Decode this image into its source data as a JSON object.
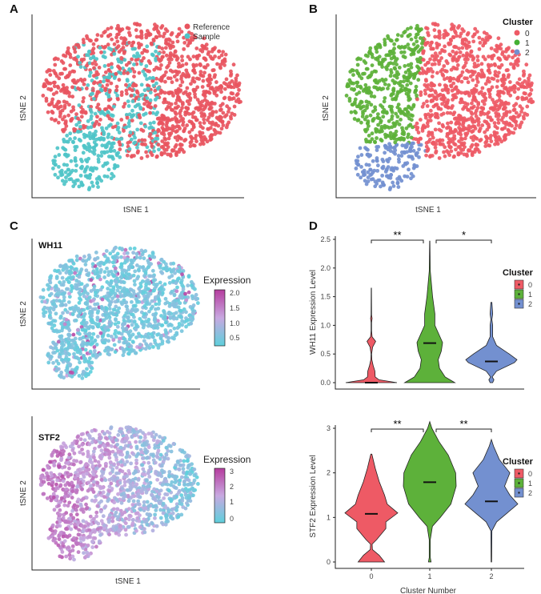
{
  "panels": {
    "a": "A",
    "b": "B",
    "c": "C",
    "d": "D"
  },
  "colors": {
    "reference": "#E8555F",
    "sample": "#4FC4C8",
    "cluster0": "#EE5A65",
    "cluster1": "#5DB13A",
    "cluster2": "#7390D0",
    "expr_low": "#5ED0DC",
    "expr_mid": "#C8A8E0",
    "expr_high": "#B53C9E"
  },
  "chart_data": [
    {
      "type": "scatter",
      "panel": "A",
      "xlabel": "tSNE 1",
      "ylabel": "tSNE 2",
      "legend": "top-right",
      "series": [
        {
          "name": "Reference",
          "color": "#E8555F"
        },
        {
          "name": "Sample",
          "color": "#4FC4C8"
        }
      ]
    },
    {
      "type": "scatter",
      "panel": "B",
      "xlabel": "tSNE 1",
      "ylabel": "tSNE 2",
      "legend_title": "Cluster",
      "legend": "right",
      "series": [
        {
          "name": "0",
          "color": "#EE5A65"
        },
        {
          "name": "1",
          "color": "#45B035"
        },
        {
          "name": "2",
          "color": "#7390D0"
        }
      ]
    },
    {
      "type": "scatter",
      "panel": "C-top",
      "title": "WH11",
      "ylabel": "tSNE 2",
      "legend_title": "Expression",
      "colorbar_ticks": [
        "2.0",
        "1.5",
        "1.0",
        "0.5"
      ],
      "color_range": [
        0.3,
        2.1
      ]
    },
    {
      "type": "scatter",
      "panel": "C-bottom",
      "title": "STF2",
      "xlabel": "tSNE 1",
      "ylabel": "tSNE 2",
      "legend_title": "Expression",
      "colorbar_ticks": [
        "3",
        "2",
        "1",
        "0"
      ],
      "color_range": [
        0,
        3.3
      ]
    },
    {
      "type": "violin",
      "panel": "D-top",
      "ylabel": "WH11 Expression Level",
      "ylim": [
        0,
        2.5
      ],
      "yticks": [
        "0.0",
        "0.5",
        "1.0",
        "1.5",
        "2.0",
        "2.5"
      ],
      "categories": [
        "0",
        "1",
        "2"
      ],
      "medians": [
        0.0,
        0.69,
        0.37
      ],
      "density": [
        [
          [
            0,
            1.0
          ],
          [
            0.05,
            0.3
          ],
          [
            0.1,
            0.15
          ],
          [
            0.2,
            0.14
          ],
          [
            0.3,
            0.07
          ],
          [
            0.4,
            0.02
          ],
          [
            0.5,
            0.01
          ],
          [
            0.62,
            0.05
          ],
          [
            0.72,
            0.17
          ],
          [
            0.8,
            0.03
          ],
          [
            0.9,
            0.01
          ],
          [
            1.05,
            0.01
          ],
          [
            1.12,
            0.03
          ],
          [
            1.18,
            0.01
          ],
          [
            1.65,
            0.005
          ]
        ],
        [
          [
            0,
            0.98
          ],
          [
            0.1,
            0.6
          ],
          [
            0.25,
            0.38
          ],
          [
            0.4,
            0.33
          ],
          [
            0.55,
            0.45
          ],
          [
            0.7,
            0.5
          ],
          [
            0.85,
            0.35
          ],
          [
            1.0,
            0.2
          ],
          [
            1.2,
            0.2
          ],
          [
            1.5,
            0.11
          ],
          [
            1.8,
            0.05
          ],
          [
            1.95,
            0.02
          ],
          [
            2.47,
            0.005
          ]
        ],
        [
          [
            0,
            0.05
          ],
          [
            0.05,
            0.1
          ],
          [
            0.1,
            0.03
          ],
          [
            0.2,
            0.2
          ],
          [
            0.35,
            0.9
          ],
          [
            0.4,
            1.0
          ],
          [
            0.5,
            0.7
          ],
          [
            0.65,
            0.2
          ],
          [
            0.8,
            0.05
          ],
          [
            1.0,
            0.05
          ],
          [
            1.1,
            0.02
          ],
          [
            1.2,
            0.05
          ],
          [
            1.4,
            0.02
          ]
        ]
      ],
      "significance": [
        {
          "from": "0",
          "to": "1",
          "label": "**"
        },
        {
          "from": "1",
          "to": "2",
          "label": "*"
        }
      ],
      "legend_title": "Cluster",
      "legend": [
        "0",
        "1",
        "2"
      ]
    },
    {
      "type": "violin",
      "panel": "D-bottom",
      "xlabel": "Cluster Number",
      "ylabel": "STF2 Expression Level",
      "ylim": [
        0,
        3
      ],
      "yticks": [
        "0",
        "1",
        "2",
        "3"
      ],
      "categories": [
        "0",
        "1",
        "2"
      ],
      "medians": [
        1.08,
        1.79,
        1.36
      ],
      "density": [
        [
          [
            0,
            0.5
          ],
          [
            0.15,
            0.3
          ],
          [
            0.28,
            0.04
          ],
          [
            0.4,
            0.03
          ],
          [
            0.5,
            0.2
          ],
          [
            0.75,
            0.55
          ],
          [
            0.9,
            0.55
          ],
          [
            1.1,
            1.0
          ],
          [
            1.3,
            0.6
          ],
          [
            1.5,
            0.5
          ],
          [
            1.8,
            0.3
          ],
          [
            2.1,
            0.15
          ],
          [
            2.42,
            0.02
          ]
        ],
        [
          [
            0,
            0.05
          ],
          [
            0.1,
            0.02
          ],
          [
            0.5,
            0.02
          ],
          [
            0.8,
            0.1
          ],
          [
            1.0,
            0.4
          ],
          [
            1.3,
            0.8
          ],
          [
            1.7,
            1.0
          ],
          [
            2.0,
            0.98
          ],
          [
            2.4,
            0.7
          ],
          [
            2.7,
            0.35
          ],
          [
            3.0,
            0.08
          ],
          [
            3.15,
            0.0
          ]
        ],
        [
          [
            0,
            0.01
          ],
          [
            0.7,
            0.02
          ],
          [
            0.9,
            0.2
          ],
          [
            1.1,
            0.6
          ],
          [
            1.3,
            1.0
          ],
          [
            1.5,
            0.7
          ],
          [
            1.7,
            0.5
          ],
          [
            2.0,
            0.7
          ],
          [
            2.3,
            0.3
          ],
          [
            2.6,
            0.08
          ],
          [
            2.75,
            0.0
          ]
        ]
      ],
      "significance": [
        {
          "from": "0",
          "to": "1",
          "label": "**"
        },
        {
          "from": "1",
          "to": "2",
          "label": "**"
        }
      ],
      "legend_title": "Cluster",
      "legend": [
        "0",
        "1",
        "2"
      ]
    }
  ]
}
